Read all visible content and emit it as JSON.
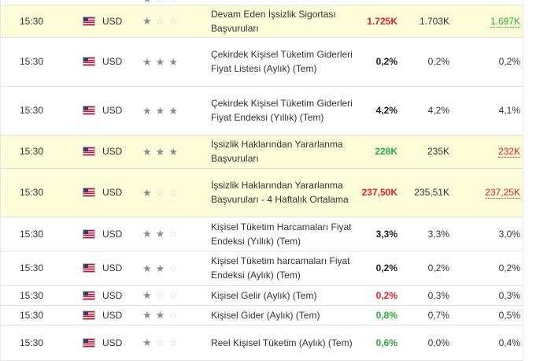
{
  "colors": {
    "highlight": "#fcfcd9",
    "up": "#2bab3f",
    "down": "#e21f26"
  },
  "rows": [
    {
      "time": "15:30",
      "currency": "USD",
      "flag_icon": "us-flag-icon",
      "importance": 1,
      "event": "Devam Eden İşsizlik Sigortası Başvuruları",
      "actual": "1.725K",
      "actual_tone": "red",
      "forecast": "1.703K",
      "previous": "1.697K",
      "previous_tone": "green",
      "highlight": true,
      "height": 40
    },
    {
      "time": "15:30",
      "currency": "USD",
      "flag_icon": "us-flag-icon",
      "importance": 3,
      "event": "Çekirdek Kişisel Tüketim Giderleri Fiyat Listesi (Aylık) (Tem)",
      "actual": "0,2%",
      "actual_tone": "dark",
      "forecast": "0,2%",
      "previous": "0,2%",
      "previous_tone": "plain",
      "highlight": false,
      "height": 62
    },
    {
      "time": "15:30",
      "currency": "USD",
      "flag_icon": "us-flag-icon",
      "importance": 3,
      "event": "Çekirdek Kişisel Tüketim Giderleri Fiyat Endeksi (Yıllık) (Tem)",
      "actual": "4,2%",
      "actual_tone": "dark",
      "forecast": "4,2%",
      "previous": "4,1%",
      "previous_tone": "plain",
      "highlight": false,
      "height": 62
    },
    {
      "time": "15:30",
      "currency": "USD",
      "flag_icon": "us-flag-icon",
      "importance": 3,
      "event": "İşsizlik Haklarından Yararlanma Başvuruları",
      "actual": "228K",
      "actual_tone": "green",
      "forecast": "235K",
      "previous": "232K",
      "previous_tone": "red",
      "highlight": true,
      "height": 42
    },
    {
      "time": "15:30",
      "currency": "USD",
      "flag_icon": "us-flag-icon",
      "importance": 1,
      "event": "İşsizlik Haklarından Yararlanma Başvuruları - 4 Haftalık Ortalama",
      "actual": "237,50K",
      "actual_tone": "red",
      "forecast": "235,51K",
      "previous": "237,25K",
      "previous_tone": "red",
      "highlight": true,
      "height": 62
    },
    {
      "time": "15:30",
      "currency": "USD",
      "flag_icon": "us-flag-icon",
      "importance": 2,
      "event": "Kişisel Tüketim Harcamaları Fiyat Endeksi (Yıllık) (Tem)",
      "actual": "3,3%",
      "actual_tone": "dark",
      "forecast": "3,3%",
      "previous": "3,0%",
      "previous_tone": "plain",
      "highlight": false,
      "height": 43
    },
    {
      "time": "15:30",
      "currency": "USD",
      "flag_icon": "us-flag-icon",
      "importance": 2,
      "event": "Kişisel Tüketim harcamaları Fiyat Endeksi (Aylık) (Tem)",
      "actual": "0,2%",
      "actual_tone": "dark",
      "forecast": "0,2%",
      "previous": "0,2%",
      "previous_tone": "plain",
      "highlight": false,
      "height": 44
    },
    {
      "time": "15:30",
      "currency": "USD",
      "flag_icon": "us-flag-icon",
      "importance": 1,
      "event": "Kişisel Gelir (Aylık) (Tem)",
      "actual": "0,2%",
      "actual_tone": "red",
      "forecast": "0,3%",
      "previous": "0,3%",
      "previous_tone": "plain",
      "highlight": false,
      "height": 25
    },
    {
      "time": "15:30",
      "currency": "USD",
      "flag_icon": "us-flag-icon",
      "importance": 2,
      "event": "Kişisel Gider (Aylık) (Tem)",
      "actual": "0,8%",
      "actual_tone": "green",
      "forecast": "0,7%",
      "previous": "0,5%",
      "previous_tone": "plain",
      "highlight": false,
      "height": 25
    },
    {
      "time": "15:30",
      "currency": "USD",
      "flag_icon": "us-flag-icon",
      "importance": 1,
      "event": "Reel Kişisel Tüketim (Aylık) (Tem)",
      "actual": "0,6%",
      "actual_tone": "green",
      "forecast": "0,0%",
      "previous": "0,4%",
      "previous_tone": "plain",
      "highlight": false,
      "height": 45
    }
  ]
}
